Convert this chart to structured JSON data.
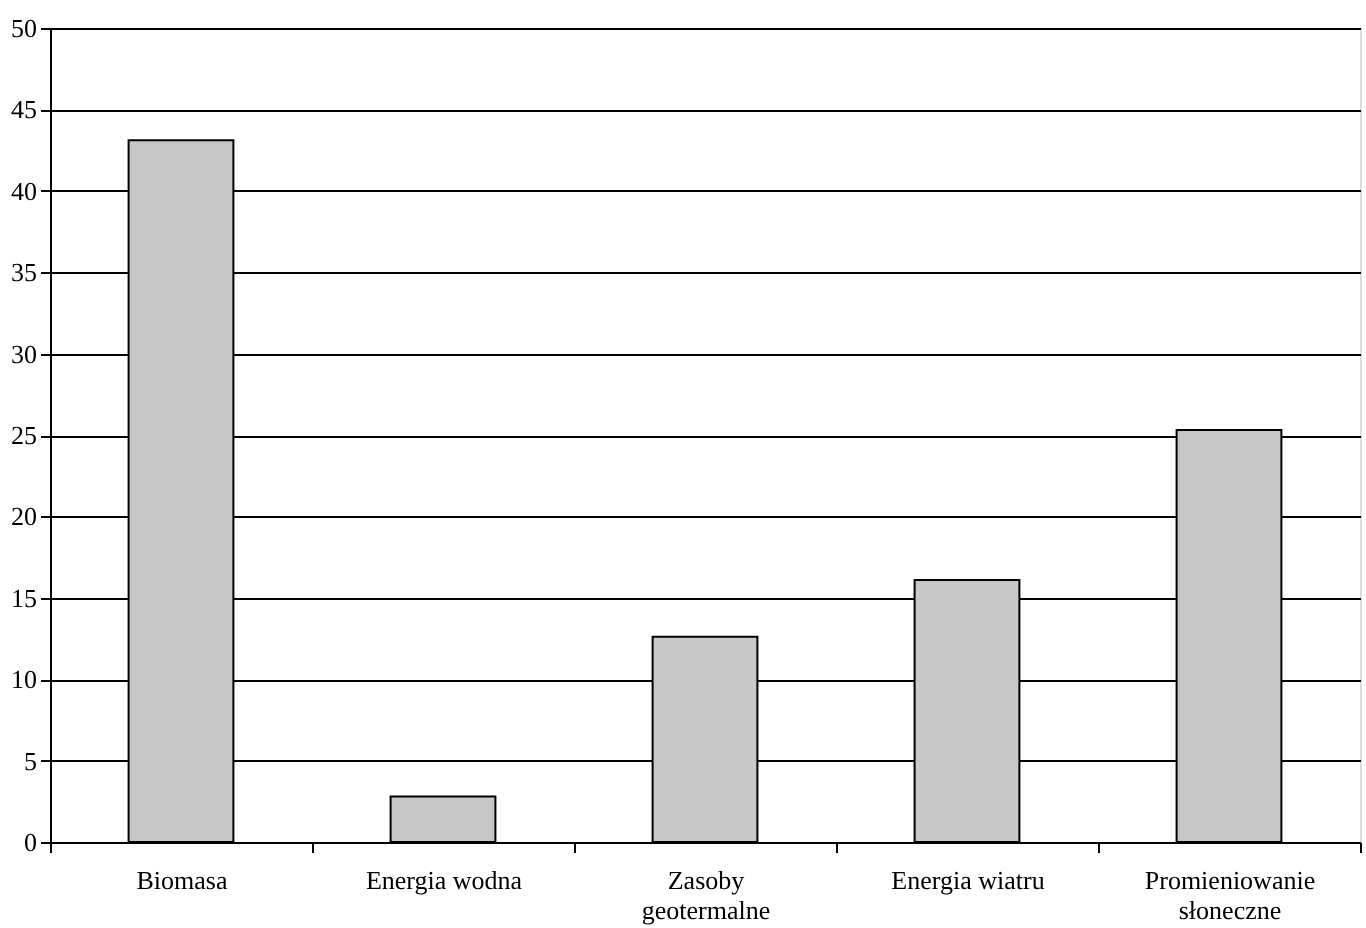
{
  "chart_data": {
    "type": "bar",
    "categories": [
      "Biomasa",
      "Energia wodna",
      "Zasoby geotermalne",
      "Energia wiatru",
      "Promieniowanie słoneczne"
    ],
    "values": [
      43.1,
      2.8,
      12.6,
      16.1,
      25.3
    ],
    "color": "#c8c8c8",
    "ylim": [
      0,
      50
    ],
    "yticks": [
      0,
      5,
      10,
      15,
      20,
      25,
      30,
      35,
      40,
      45,
      50
    ],
    "grid": "y"
  }
}
